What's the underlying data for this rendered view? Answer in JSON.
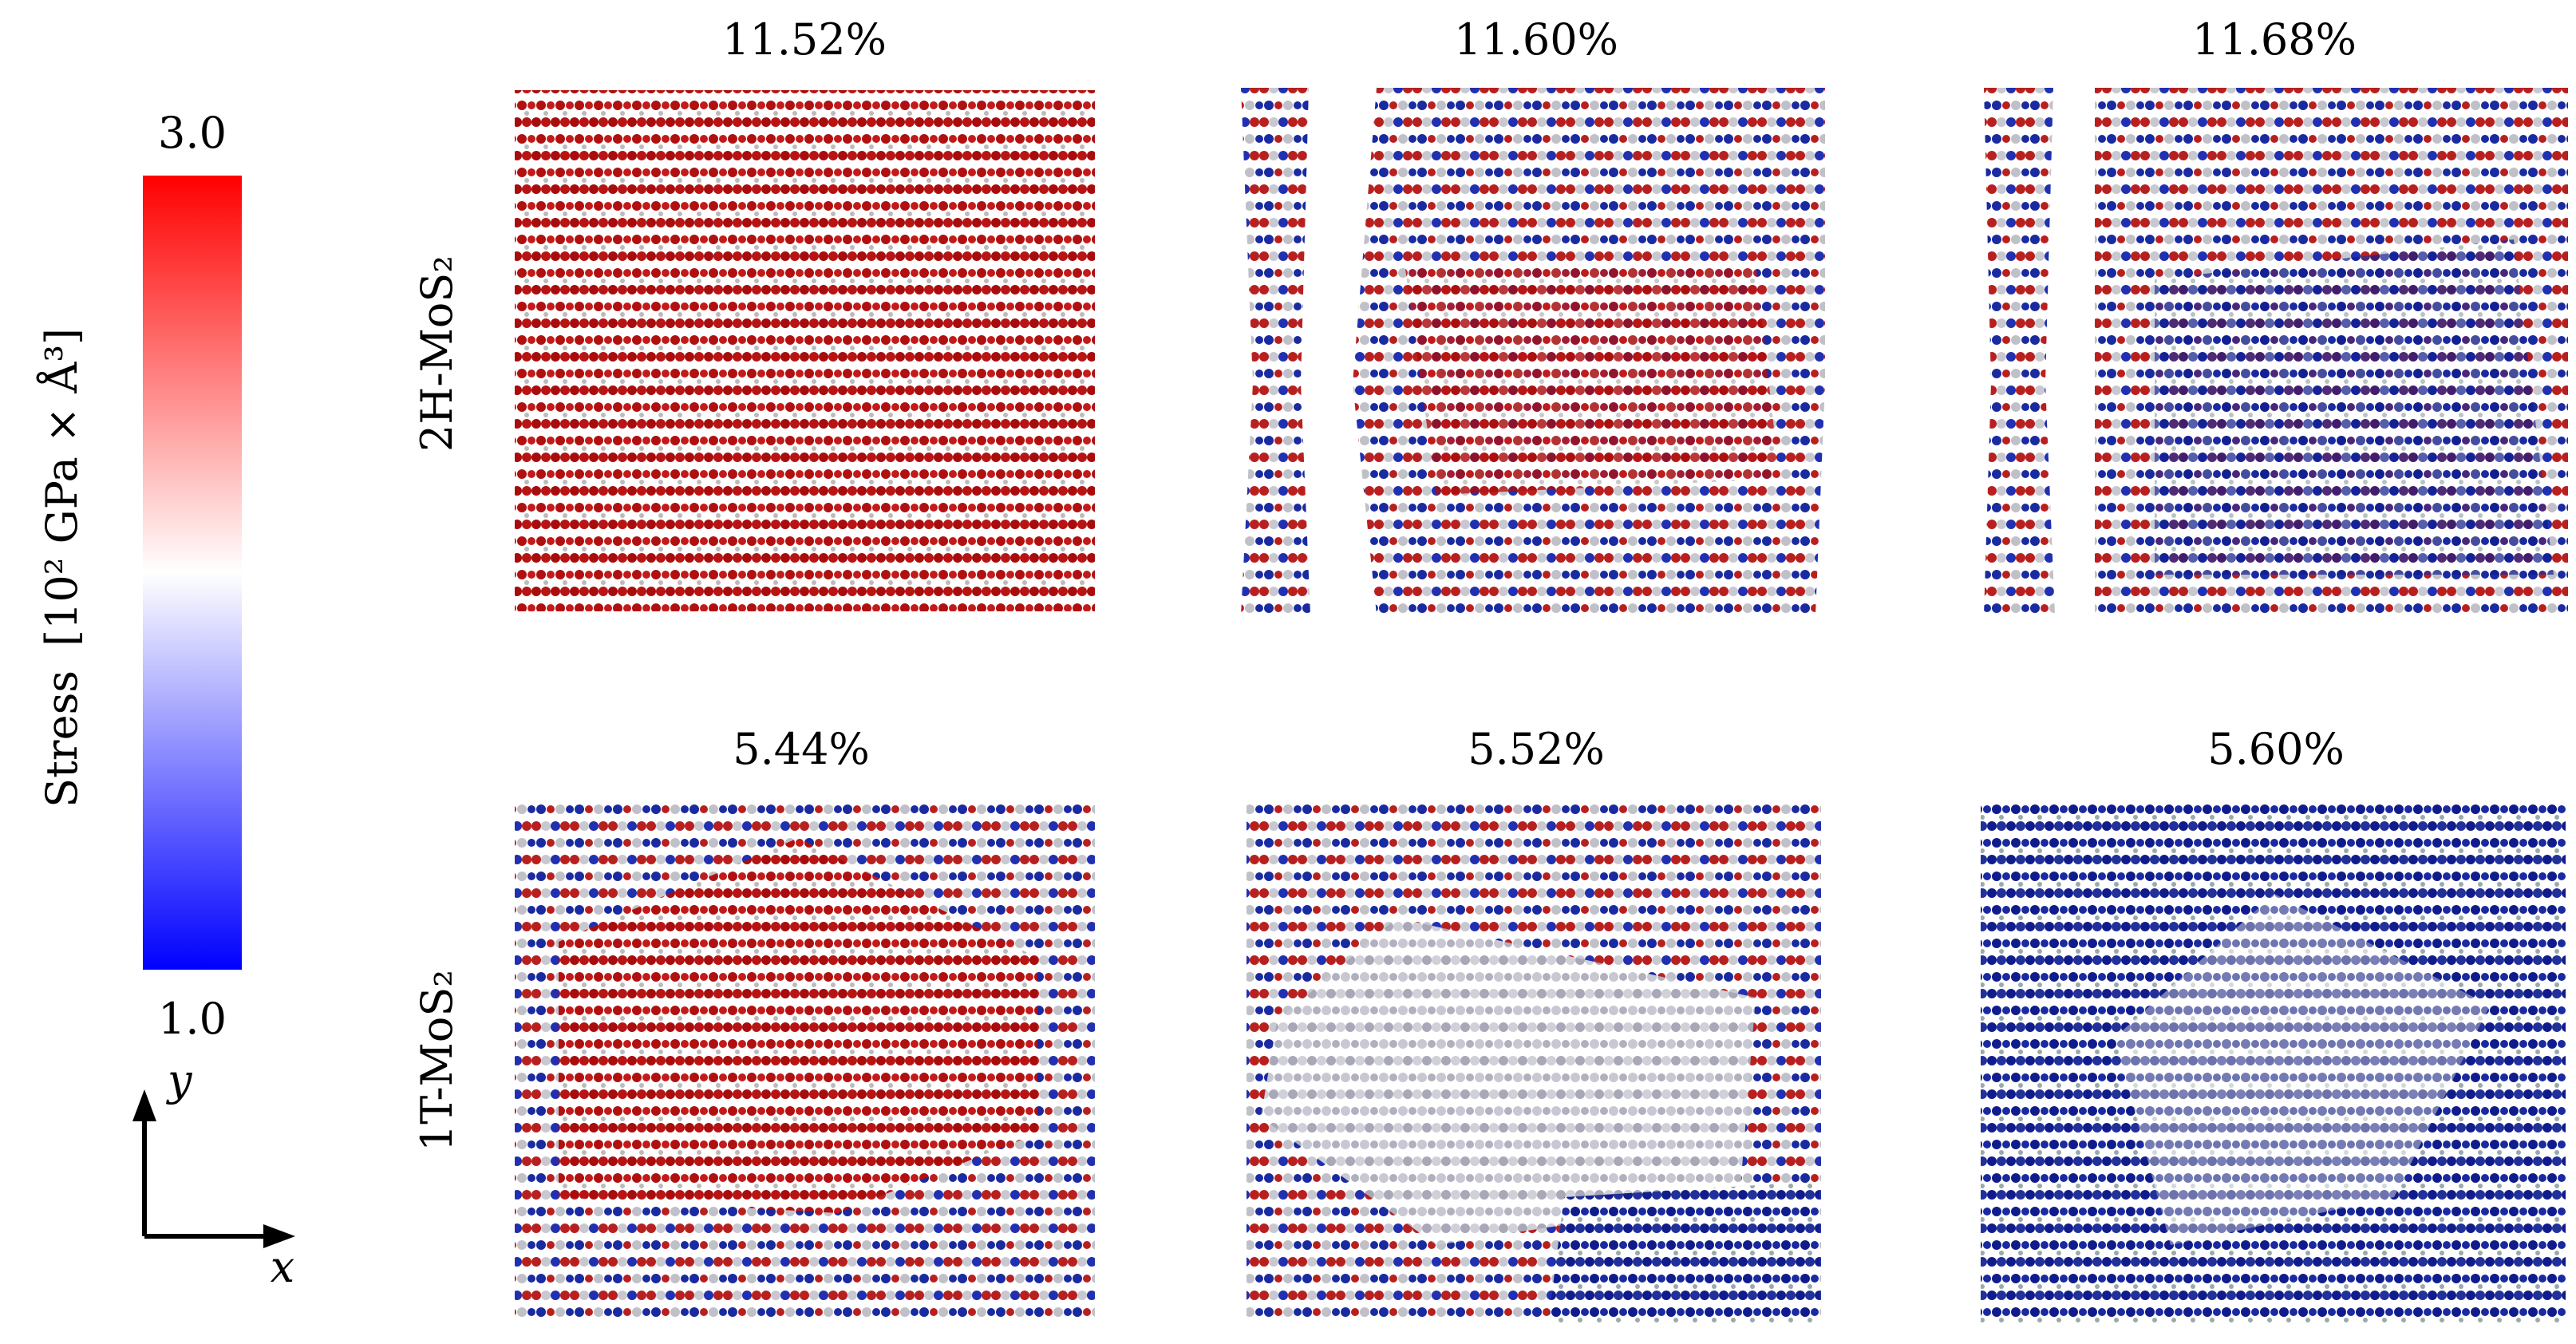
{
  "colorbar": {
    "max": "3.0",
    "min": "1.0",
    "label": "Stress",
    "unit": "[10² GPa × Å³]"
  },
  "axes": {
    "y": "y",
    "x": "x"
  },
  "rows": [
    {
      "label": "2H-MoS₂",
      "panels": [
        "11.52%",
        "11.60%",
        "11.68%"
      ]
    },
    {
      "label": "1T-MoS₂",
      "panels": [
        "5.44%",
        "5.52%",
        "5.60%"
      ]
    }
  ]
}
